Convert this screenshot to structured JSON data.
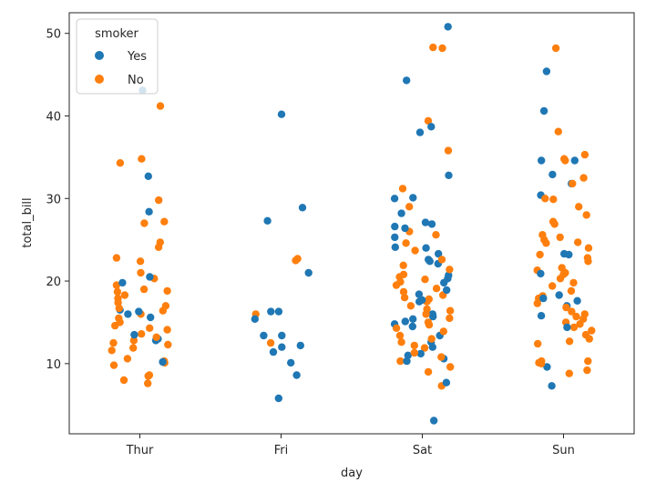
{
  "chart_data": {
    "type": "scatter",
    "subtype": "strip",
    "title": "",
    "xlabel": "day",
    "ylabel": "total_bill",
    "categories": [
      "Thur",
      "Fri",
      "Sat",
      "Sun"
    ],
    "ylim": [
      1.5,
      52.5
    ],
    "yticks": [
      10,
      20,
      30,
      40,
      50
    ],
    "legend": {
      "title": "smoker",
      "placement": "top-left",
      "entries": [
        "Yes",
        "No"
      ]
    },
    "colors": {
      "Yes": "#1f77b4",
      "No": "#ff7f0e"
    },
    "series": [
      {
        "name": "Yes",
        "points": [
          [
            "Thur",
            43.1
          ],
          [
            "Thur",
            32.7
          ],
          [
            "Thur",
            28.4
          ],
          [
            "Thur",
            20.5
          ],
          [
            "Thur",
            19.8
          ],
          [
            "Thur",
            16.5
          ],
          [
            "Thur",
            16.3
          ],
          [
            "Thur",
            16.0
          ],
          [
            "Thur",
            15.6
          ],
          [
            "Thur",
            13.5
          ],
          [
            "Thur",
            13.0
          ],
          [
            "Thur",
            12.8
          ],
          [
            "Thur",
            10.2
          ],
          [
            "Fri",
            40.2
          ],
          [
            "Fri",
            28.9
          ],
          [
            "Fri",
            27.3
          ],
          [
            "Fri",
            21.0
          ],
          [
            "Fri",
            16.3
          ],
          [
            "Fri",
            16.3
          ],
          [
            "Fri",
            15.4
          ],
          [
            "Fri",
            13.4
          ],
          [
            "Fri",
            13.4
          ],
          [
            "Fri",
            12.2
          ],
          [
            "Fri",
            12.0
          ],
          [
            "Fri",
            11.4
          ],
          [
            "Fri",
            10.1
          ],
          [
            "Fri",
            8.6
          ],
          [
            "Fri",
            5.8
          ],
          [
            "Sat",
            50.8
          ],
          [
            "Sat",
            44.3
          ],
          [
            "Sat",
            38.7
          ],
          [
            "Sat",
            38.0
          ],
          [
            "Sat",
            32.8
          ],
          [
            "Sat",
            30.1
          ],
          [
            "Sat",
            30.0
          ],
          [
            "Sat",
            28.2
          ],
          [
            "Sat",
            27.1
          ],
          [
            "Sat",
            26.9
          ],
          [
            "Sat",
            26.6
          ],
          [
            "Sat",
            26.4
          ],
          [
            "Sat",
            25.3
          ],
          [
            "Sat",
            24.1
          ],
          [
            "Sat",
            24.0
          ],
          [
            "Sat",
            23.3
          ],
          [
            "Sat",
            22.6
          ],
          [
            "Sat",
            22.4
          ],
          [
            "Sat",
            22.1
          ],
          [
            "Sat",
            20.7
          ],
          [
            "Sat",
            20.3
          ],
          [
            "Sat",
            19.8
          ],
          [
            "Sat",
            18.9
          ],
          [
            "Sat",
            18.4
          ],
          [
            "Sat",
            17.7
          ],
          [
            "Sat",
            17.5
          ],
          [
            "Sat",
            16.0
          ],
          [
            "Sat",
            15.7
          ],
          [
            "Sat",
            15.4
          ],
          [
            "Sat",
            15.1
          ],
          [
            "Sat",
            14.8
          ],
          [
            "Sat",
            14.5
          ],
          [
            "Sat",
            13.4
          ],
          [
            "Sat",
            12.6
          ],
          [
            "Sat",
            12.0
          ],
          [
            "Sat",
            11.2
          ],
          [
            "Sat",
            11.0
          ],
          [
            "Sat",
            10.6
          ],
          [
            "Sat",
            10.3
          ],
          [
            "Sat",
            7.7
          ],
          [
            "Sat",
            3.1
          ],
          [
            "Sun",
            45.4
          ],
          [
            "Sun",
            40.6
          ],
          [
            "Sun",
            34.6
          ],
          [
            "Sun",
            34.6
          ],
          [
            "Sun",
            32.9
          ],
          [
            "Sun",
            31.8
          ],
          [
            "Sun",
            30.4
          ],
          [
            "Sun",
            23.3
          ],
          [
            "Sun",
            23.2
          ],
          [
            "Sun",
            20.9
          ],
          [
            "Sun",
            18.3
          ],
          [
            "Sun",
            17.9
          ],
          [
            "Sun",
            17.6
          ],
          [
            "Sun",
            17.0
          ],
          [
            "Sun",
            15.8
          ],
          [
            "Sun",
            14.4
          ],
          [
            "Sun",
            9.6
          ],
          [
            "Sun",
            7.3
          ]
        ]
      },
      {
        "name": "No",
        "points": [
          [
            "Thur",
            41.2
          ],
          [
            "Thur",
            34.8
          ],
          [
            "Thur",
            34.3
          ],
          [
            "Thur",
            29.8
          ],
          [
            "Thur",
            27.2
          ],
          [
            "Thur",
            27.0
          ],
          [
            "Thur",
            24.7
          ],
          [
            "Thur",
            24.1
          ],
          [
            "Thur",
            22.8
          ],
          [
            "Thur",
            22.4
          ],
          [
            "Thur",
            21.0
          ],
          [
            "Thur",
            20.3
          ],
          [
            "Thur",
            19.5
          ],
          [
            "Thur",
            19.0
          ],
          [
            "Thur",
            18.8
          ],
          [
            "Thur",
            18.7
          ],
          [
            "Thur",
            18.3
          ],
          [
            "Thur",
            17.9
          ],
          [
            "Thur",
            17.4
          ],
          [
            "Thur",
            17.0
          ],
          [
            "Thur",
            16.7
          ],
          [
            "Thur",
            16.4
          ],
          [
            "Thur",
            16.0
          ],
          [
            "Thur",
            15.5
          ],
          [
            "Thur",
            15.0
          ],
          [
            "Thur",
            14.6
          ],
          [
            "Thur",
            14.3
          ],
          [
            "Thur",
            14.1
          ],
          [
            "Thur",
            13.6
          ],
          [
            "Thur",
            13.2
          ],
          [
            "Thur",
            12.8
          ],
          [
            "Thur",
            12.5
          ],
          [
            "Thur",
            12.3
          ],
          [
            "Thur",
            11.9
          ],
          [
            "Thur",
            11.6
          ],
          [
            "Thur",
            10.6
          ],
          [
            "Thur",
            10.3
          ],
          [
            "Thur",
            10.1
          ],
          [
            "Thur",
            9.8
          ],
          [
            "Thur",
            8.6
          ],
          [
            "Thur",
            8.5
          ],
          [
            "Thur",
            8.0
          ],
          [
            "Thur",
            7.6
          ],
          [
            "Fri",
            22.7
          ],
          [
            "Fri",
            22.5
          ],
          [
            "Fri",
            16.0
          ],
          [
            "Fri",
            12.5
          ],
          [
            "Sat",
            48.3
          ],
          [
            "Sat",
            48.2
          ],
          [
            "Sat",
            39.4
          ],
          [
            "Sat",
            35.8
          ],
          [
            "Sat",
            31.2
          ],
          [
            "Sat",
            29.0
          ],
          [
            "Sat",
            26.0
          ],
          [
            "Sat",
            25.6
          ],
          [
            "Sat",
            24.6
          ],
          [
            "Sat",
            23.7
          ],
          [
            "Sat",
            22.6
          ],
          [
            "Sat",
            21.9
          ],
          [
            "Sat",
            21.4
          ],
          [
            "Sat",
            20.8
          ],
          [
            "Sat",
            20.5
          ],
          [
            "Sat",
            20.2
          ],
          [
            "Sat",
            19.9
          ],
          [
            "Sat",
            19.5
          ],
          [
            "Sat",
            19.1
          ],
          [
            "Sat",
            18.7
          ],
          [
            "Sat",
            18.3
          ],
          [
            "Sat",
            18.0
          ],
          [
            "Sat",
            17.8
          ],
          [
            "Sat",
            17.5
          ],
          [
            "Sat",
            17.0
          ],
          [
            "Sat",
            16.6
          ],
          [
            "Sat",
            16.4
          ],
          [
            "Sat",
            16.0
          ],
          [
            "Sat",
            15.5
          ],
          [
            "Sat",
            15.0
          ],
          [
            "Sat",
            14.7
          ],
          [
            "Sat",
            14.3
          ],
          [
            "Sat",
            13.9
          ],
          [
            "Sat",
            13.4
          ],
          [
            "Sat",
            13.0
          ],
          [
            "Sat",
            12.6
          ],
          [
            "Sat",
            12.2
          ],
          [
            "Sat",
            11.9
          ],
          [
            "Sat",
            11.3
          ],
          [
            "Sat",
            10.8
          ],
          [
            "Sat",
            10.3
          ],
          [
            "Sat",
            9.6
          ],
          [
            "Sat",
            9.0
          ],
          [
            "Sat",
            7.3
          ],
          [
            "Sun",
            48.2
          ],
          [
            "Sun",
            38.1
          ],
          [
            "Sun",
            35.3
          ],
          [
            "Sun",
            34.8
          ],
          [
            "Sun",
            34.6
          ],
          [
            "Sun",
            32.5
          ],
          [
            "Sun",
            31.8
          ],
          [
            "Sun",
            30.0
          ],
          [
            "Sun",
            29.9
          ],
          [
            "Sun",
            29.0
          ],
          [
            "Sun",
            28.0
          ],
          [
            "Sun",
            27.2
          ],
          [
            "Sun",
            26.9
          ],
          [
            "Sun",
            25.6
          ],
          [
            "Sun",
            25.3
          ],
          [
            "Sun",
            25.0
          ],
          [
            "Sun",
            24.7
          ],
          [
            "Sun",
            24.6
          ],
          [
            "Sun",
            24.0
          ],
          [
            "Sun",
            23.2
          ],
          [
            "Sun",
            22.8
          ],
          [
            "Sun",
            22.4
          ],
          [
            "Sun",
            21.6
          ],
          [
            "Sun",
            21.3
          ],
          [
            "Sun",
            21.0
          ],
          [
            "Sun",
            20.8
          ],
          [
            "Sun",
            20.3
          ],
          [
            "Sun",
            19.8
          ],
          [
            "Sun",
            19.4
          ],
          [
            "Sun",
            18.8
          ],
          [
            "Sun",
            18.2
          ],
          [
            "Sun",
            17.9
          ],
          [
            "Sun",
            17.3
          ],
          [
            "Sun",
            16.8
          ],
          [
            "Sun",
            16.3
          ],
          [
            "Sun",
            16.0
          ],
          [
            "Sun",
            15.7
          ],
          [
            "Sun",
            15.4
          ],
          [
            "Sun",
            15.0
          ],
          [
            "Sun",
            14.8
          ],
          [
            "Sun",
            14.4
          ],
          [
            "Sun",
            14.0
          ],
          [
            "Sun",
            13.5
          ],
          [
            "Sun",
            13.0
          ],
          [
            "Sun",
            12.7
          ],
          [
            "Sun",
            12.4
          ],
          [
            "Sun",
            10.3
          ],
          [
            "Sun",
            10.3
          ],
          [
            "Sun",
            10.1
          ],
          [
            "Sun",
            10.0
          ],
          [
            "Sun",
            9.2
          ],
          [
            "Sun",
            8.8
          ]
        ]
      }
    ]
  }
}
